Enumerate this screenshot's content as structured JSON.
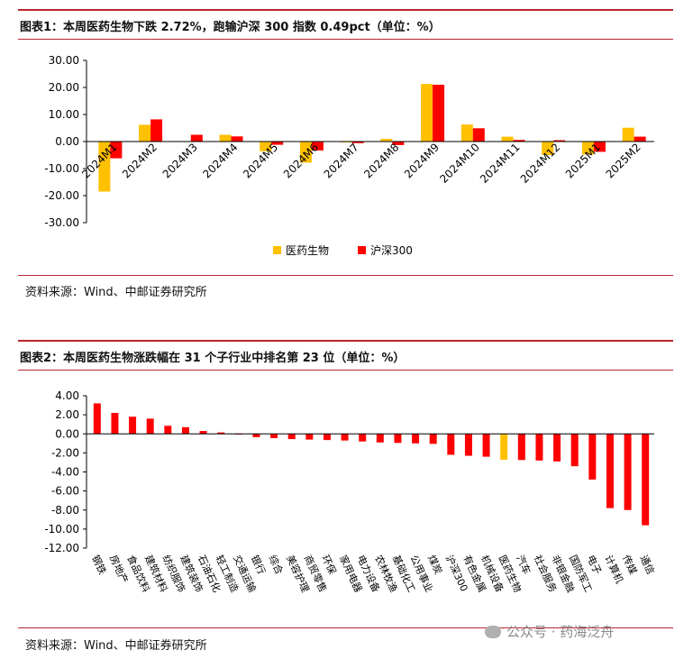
{
  "figure1": {
    "title": "图表1：本周医药生物下跌 2.72%，跑输沪深 300 指数 0.49pct（单位：%）",
    "source": "资料来源：Wind、中邮证券研究所"
  },
  "figure2": {
    "title": "图表2：本周医药生物涨跌幅在 31 个子行业中排名第 23 位（单位：%）",
    "source": "资料来源：Wind、中邮证券研究所"
  },
  "watermark": "公众号 · 药海泛舟",
  "colors": {
    "pharma": "#ffc000",
    "index": "#ff0000",
    "rule": "#b8262d",
    "axis": "#000000"
  },
  "chart_data": [
    {
      "type": "bar",
      "categories": [
        "2024M1",
        "2024M2",
        "2024M3",
        "2024M4",
        "2024M5",
        "2024M6",
        "2024M7",
        "2024M8",
        "2024M9",
        "2024M10",
        "2024M11",
        "2024M12",
        "2025M1",
        "2025M2"
      ],
      "series": [
        {
          "name": "医药生物",
          "color": "#ffc000",
          "values": [
            -18.5,
            6.2,
            0.0,
            2.5,
            -3.6,
            -7.8,
            -0.3,
            1.0,
            21.3,
            6.3,
            1.8,
            -5.0,
            -4.8,
            5.1
          ]
        },
        {
          "name": "沪深300",
          "color": "#ff0000",
          "values": [
            -6.2,
            8.2,
            2.5,
            1.9,
            -1.2,
            -3.3,
            -0.6,
            -1.3,
            21.0,
            4.9,
            0.6,
            0.5,
            -3.8,
            1.8
          ]
        }
      ],
      "yticks": [
        "30.00",
        "20.00",
        "10.00",
        "0.00",
        "-10.00",
        "-20.00",
        "-30.00"
      ],
      "ylim": [
        -30,
        30
      ],
      "legend_position": "bottom"
    },
    {
      "type": "bar",
      "categories": [
        "钢铁",
        "房地产",
        "食品饮料",
        "建筑材料",
        "纺织服饰",
        "建筑装饰",
        "石油石化",
        "轻工制造",
        "交通运输",
        "银行",
        "综合",
        "美容护理",
        "商贸零售",
        "环保",
        "家用电器",
        "电力设备",
        "农林牧渔",
        "基础化工",
        "公用事业",
        "煤炭",
        "沪深300",
        "有色金属",
        "机械设备",
        "医药生物",
        "汽车",
        "社会服务",
        "非银金融",
        "国防军工",
        "电子",
        "计算机",
        "传媒",
        "通信"
      ],
      "values": [
        3.2,
        2.2,
        1.8,
        1.6,
        0.85,
        0.7,
        0.3,
        0.15,
        -0.05,
        -0.35,
        -0.45,
        -0.55,
        -0.6,
        -0.65,
        -0.7,
        -0.8,
        -0.9,
        -0.95,
        -1.0,
        -1.05,
        -2.2,
        -2.3,
        -2.4,
        -2.72,
        -2.75,
        -2.8,
        -2.9,
        -3.4,
        -4.8,
        -7.8,
        -8.0,
        -9.6
      ],
      "highlight": [
        "医药生物"
      ],
      "yticks": [
        "4.00",
        "2.00",
        "0.00",
        "-2.00",
        "-4.00",
        "-6.00",
        "-8.00",
        "-10.00",
        "-12.00"
      ],
      "ylim": [
        -12,
        4
      ]
    }
  ]
}
